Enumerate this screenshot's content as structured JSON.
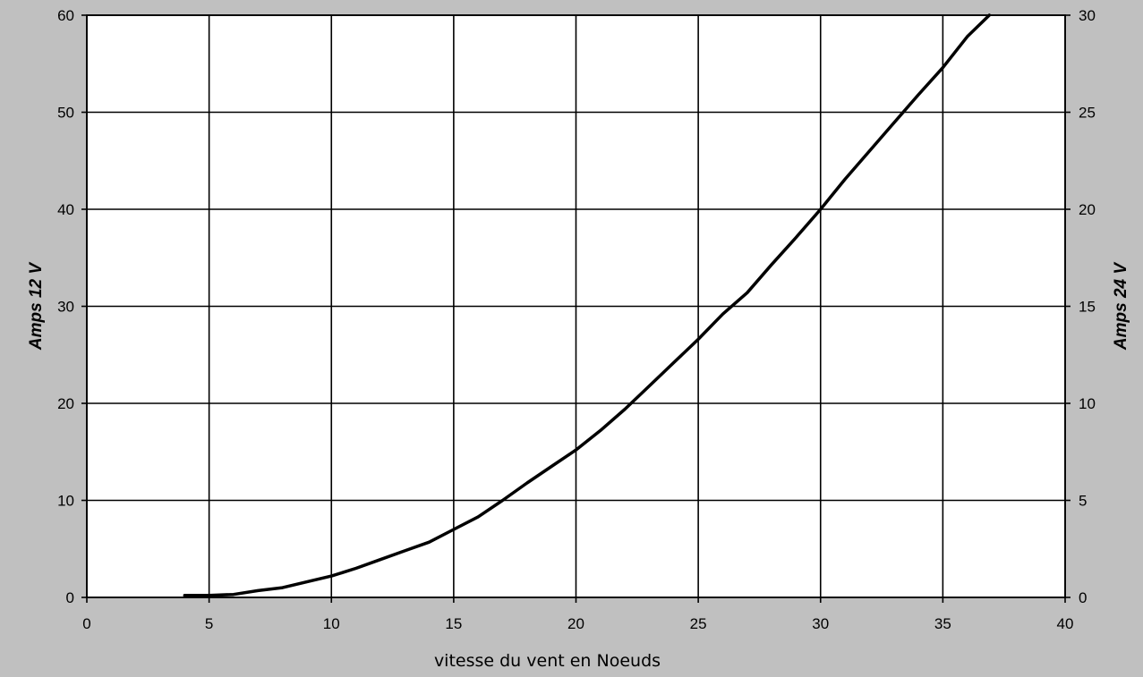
{
  "chart_data": {
    "type": "line",
    "title": "",
    "xlabel": "vitesse du vent en Noeuds",
    "ylabel": "Amps 12 V",
    "y2label": "Amps 24 V",
    "xlim": [
      0,
      40
    ],
    "ylim": [
      0,
      60
    ],
    "y2lim": [
      0,
      30
    ],
    "x_ticks": [
      0,
      5,
      10,
      15,
      20,
      25,
      30,
      35,
      40
    ],
    "y_ticks": [
      0,
      10,
      20,
      30,
      40,
      50,
      60
    ],
    "y2_ticks": [
      0,
      5,
      10,
      15,
      20,
      25,
      30
    ],
    "grid": true,
    "legend": "none",
    "series": [
      {
        "x": [
          4,
          5,
          6,
          7,
          8,
          9,
          10,
          11,
          12,
          13,
          14,
          15,
          16,
          17,
          18,
          19,
          20,
          21,
          22,
          23,
          24,
          25,
          26,
          27,
          28,
          29,
          30,
          31,
          32,
          33,
          34,
          35,
          36,
          36.9
        ],
        "y": [
          0.2,
          0.2,
          0.3,
          0.7,
          1.0,
          1.6,
          2.2,
          3.0,
          3.9,
          4.8,
          5.7,
          7.0,
          8.3,
          10.0,
          11.8,
          13.5,
          15.2,
          17.2,
          19.4,
          21.8,
          24.2,
          26.6,
          29.2,
          31.4,
          34.3,
          37.1,
          40.0,
          43.1,
          46.0,
          48.9,
          51.8,
          54.6,
          57.8,
          60.0
        ],
        "color": "#000000"
      }
    ],
    "colors": {
      "background": "#c0c0c0",
      "plot_area": "#ffffff",
      "grid": "#000000",
      "line": "#000000"
    }
  }
}
